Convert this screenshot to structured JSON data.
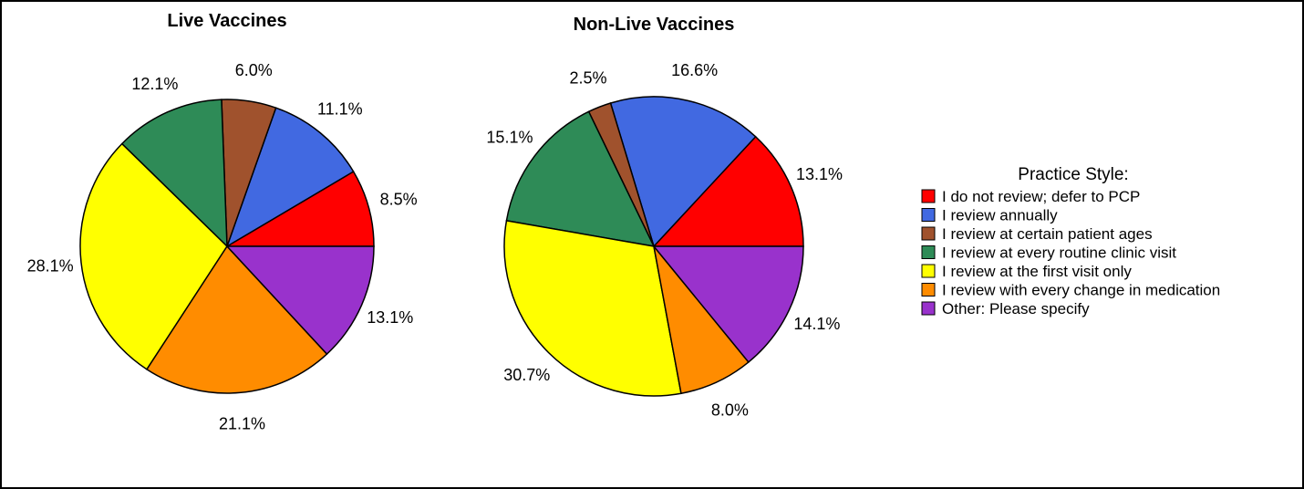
{
  "chart_data": [
    {
      "type": "pie",
      "title": "Live Vaccines",
      "categories": [
        "I do not review; defer to PCP",
        "I review annually",
        "I review at certain patient ages",
        "I review at every routine clinic visit",
        "I review at the first visit only",
        "I review with every change in medication",
        "Other: Please specify"
      ],
      "values": [
        8.5,
        11.1,
        6.0,
        12.1,
        28.1,
        21.1,
        13.1
      ],
      "labels": [
        "8.5%",
        "11.1%",
        "6.0%",
        "12.1%",
        "28.1%",
        "21.1%",
        "13.1%"
      ],
      "start": "3 o'clock",
      "direction": "counter-clockwise"
    },
    {
      "type": "pie",
      "title": "Non-Live Vaccines",
      "categories": [
        "I do not review; defer to PCP",
        "I review annually",
        "I review at certain patient ages",
        "I review at every routine clinic visit",
        "I review at the first visit only",
        "I review with every change in medication",
        "Other: Please specify"
      ],
      "values": [
        13.1,
        16.6,
        2.5,
        15.1,
        30.7,
        8.0,
        14.1
      ],
      "labels": [
        "13.1%",
        "16.6%",
        "2.5%",
        "15.1%",
        "30.7%",
        "8.0%",
        "14.1%"
      ],
      "start": "3 o'clock",
      "direction": "counter-clockwise"
    }
  ],
  "legend": {
    "title": "Practice Style:",
    "placement": "right",
    "items": [
      {
        "label": "I do not review; defer to PCP",
        "color": "#ff0000"
      },
      {
        "label": "I review annually",
        "color": "#4169e1"
      },
      {
        "label": "I review at certain patient ages",
        "color": "#a0522d"
      },
      {
        "label": "I review at every routine clinic visit",
        "color": "#2e8b57"
      },
      {
        "label": "I review at the first visit only",
        "color": "#ffff00"
      },
      {
        "label": "I review with every change in medication",
        "color": "#ff8c00"
      },
      {
        "label": "Other: Please specify",
        "color": "#9932cc"
      }
    ]
  }
}
